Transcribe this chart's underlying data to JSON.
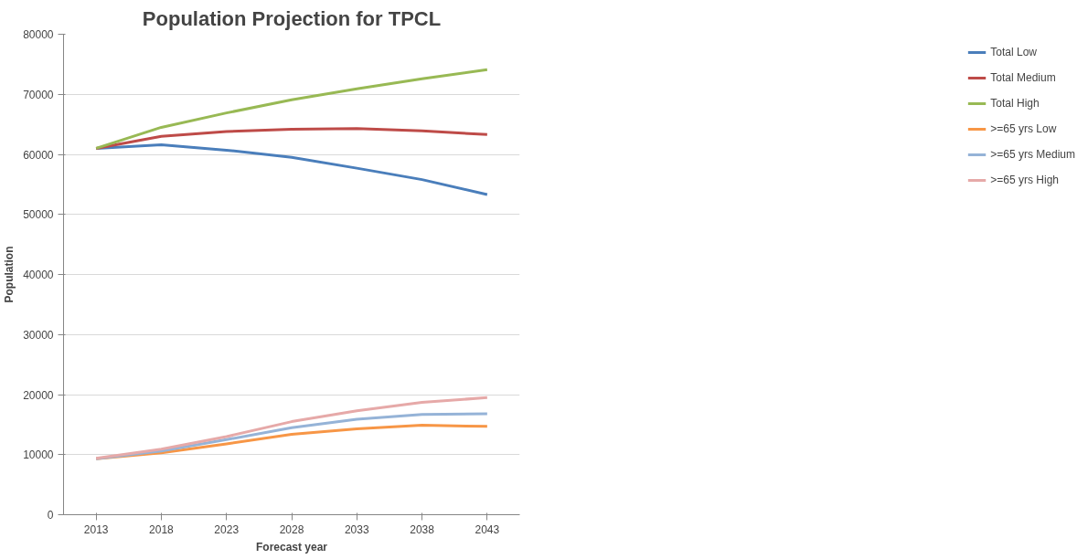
{
  "chart_data": {
    "type": "line",
    "title": "Population Projection for TPCL",
    "xlabel": "Forecast year",
    "ylabel": "Population",
    "categories": [
      "2013",
      "2018",
      "2023",
      "2028",
      "2033",
      "2038",
      "2043"
    ],
    "series": [
      {
        "name": "Total Low",
        "color": "#4a7ebb",
        "values": [
          61000,
          61600,
          60700,
          59500,
          57700,
          55800,
          53300
        ]
      },
      {
        "name": "Total Medium",
        "color": "#be4b48",
        "values": [
          61000,
          63000,
          63800,
          64200,
          64300,
          63900,
          63300
        ]
      },
      {
        "name": "Total High",
        "color": "#98b954",
        "values": [
          61000,
          64500,
          66900,
          69100,
          70900,
          72600,
          74100
        ]
      },
      {
        "name": ">=65 yrs Low",
        "color": "#f79646",
        "values": [
          9300,
          10300,
          11800,
          13400,
          14300,
          14900,
          14700
        ]
      },
      {
        "name": ">=65 yrs Medium",
        "color": "#95b3d7",
        "values": [
          9300,
          10600,
          12500,
          14500,
          15900,
          16700,
          16800
        ]
      },
      {
        "name": ">=65 yrs High",
        "color": "#e6a9a8",
        "values": [
          9400,
          10900,
          13000,
          15500,
          17300,
          18700,
          19500
        ]
      }
    ],
    "ylim": [
      0,
      80000
    ],
    "yticks": [
      0,
      10000,
      20000,
      30000,
      40000,
      50000,
      60000,
      70000,
      80000
    ],
    "grid": "y",
    "legend": "right",
    "marker": "none",
    "line_style": "solid"
  }
}
